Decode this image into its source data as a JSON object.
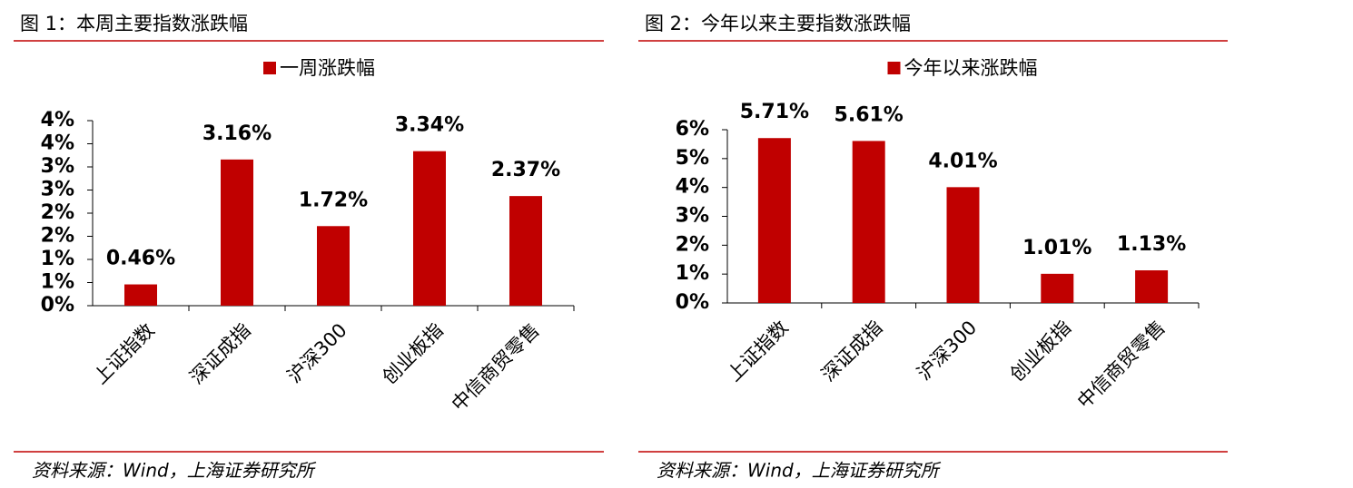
{
  "chart_data": [
    {
      "type": "bar",
      "title": "图 1：本周主要指数涨跌幅",
      "categories": [
        "上证指数",
        "深证成指",
        "沪深300",
        "创业板指",
        "中信商贸零售"
      ],
      "series": [
        {
          "name": "一周涨跌幅",
          "color": "#c00000",
          "values": [
            0.46,
            3.16,
            1.72,
            3.34,
            2.37
          ],
          "value_labels": [
            "0.46%",
            "3.16%",
            "1.72%",
            "3.34%",
            "2.37%"
          ]
        }
      ],
      "ylim": [
        0,
        4
      ],
      "yticks": [
        {
          "value": 0,
          "label": "0%"
        },
        {
          "value": 0.5,
          "label": "1%"
        },
        {
          "value": 1,
          "label": "1%"
        },
        {
          "value": 1.5,
          "label": "2%"
        },
        {
          "value": 2,
          "label": "2%"
        },
        {
          "value": 2.5,
          "label": "3%"
        },
        {
          "value": 3,
          "label": "3%"
        },
        {
          "value": 3.5,
          "label": "4%"
        },
        {
          "value": 4,
          "label": "4%"
        }
      ],
      "source": "资料来源：Wind，上海证券研究所"
    },
    {
      "type": "bar",
      "title": "图 2：今年以来主要指数涨跌幅",
      "categories": [
        "上证指数",
        "深证成指",
        "沪深300",
        "创业板指",
        "中信商贸零售"
      ],
      "series": [
        {
          "name": "今年以来涨跌幅",
          "color": "#c00000",
          "values": [
            5.71,
            5.61,
            4.01,
            1.01,
            1.13
          ],
          "value_labels": [
            "5.71%",
            "5.61%",
            "4.01%",
            "1.01%",
            "1.13%"
          ]
        }
      ],
      "ylim": [
        0,
        6
      ],
      "yticks": [
        {
          "value": 0,
          "label": "0%"
        },
        {
          "value": 1,
          "label": "1%"
        },
        {
          "value": 2,
          "label": "2%"
        },
        {
          "value": 3,
          "label": "3%"
        },
        {
          "value": 4,
          "label": "4%"
        },
        {
          "value": 5,
          "label": "5%"
        },
        {
          "value": 6,
          "label": "6%"
        }
      ],
      "source": "资料来源：Wind，上海证券研究所"
    }
  ]
}
